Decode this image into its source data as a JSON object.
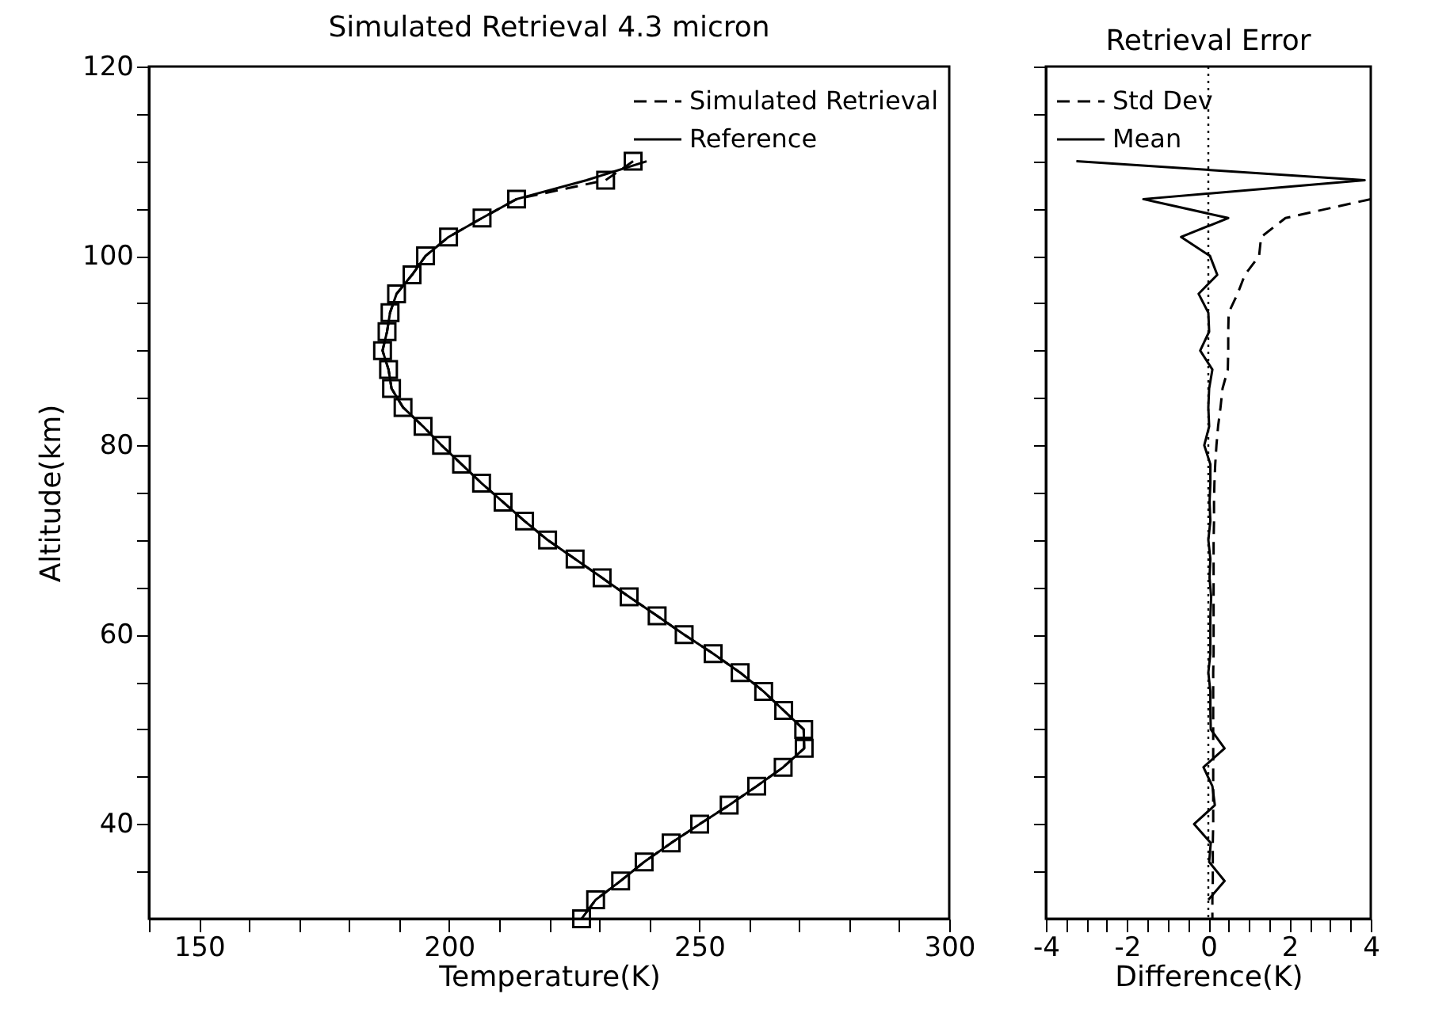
{
  "chart_data": [
    {
      "type": "line",
      "title": "Simulated Retrieval 4.3 micron",
      "xlabel": "Temperature(K)",
      "ylabel": "Altitude(km)",
      "xlim": [
        140,
        300
      ],
      "xticks": [
        {
          "value": 140,
          "label": null
        },
        150,
        {
          "value": 160,
          "label": null
        },
        {
          "value": 170,
          "label": null
        },
        {
          "value": 180,
          "label": null
        },
        {
          "value": 190,
          "label": null
        },
        200,
        {
          "value": 210,
          "label": null
        },
        {
          "value": 220,
          "label": null
        },
        {
          "value": 230,
          "label": null
        },
        {
          "value": 240,
          "label": null
        },
        250,
        {
          "value": 260,
          "label": null
        },
        {
          "value": 270,
          "label": null
        },
        {
          "value": 280,
          "label": null
        },
        {
          "value": 290,
          "label": null
        },
        300
      ],
      "ylim": [
        30,
        120
      ],
      "yticks": [
        {
          "value": 35,
          "label": null
        },
        40,
        {
          "value": 45,
          "label": null
        },
        {
          "value": 50,
          "label": null
        },
        {
          "value": 55,
          "label": null
        },
        60,
        {
          "value": 65,
          "label": null
        },
        {
          "value": 70,
          "label": null
        },
        {
          "value": 75,
          "label": null
        },
        80,
        {
          "value": 85,
          "label": null
        },
        {
          "value": 90,
          "label": null
        },
        {
          "value": 95,
          "label": null
        },
        100,
        {
          "value": 105,
          "label": null
        },
        {
          "value": 110,
          "label": null
        },
        {
          "value": 115,
          "label": null
        },
        120
      ],
      "grid": false,
      "legend": "top right",
      "series": [
        {
          "name": "Simulated Retrieval",
          "color": "#000000",
          "line_style": "dashed",
          "marker": "square",
          "x": [
            236.8,
            231.3,
            213.5,
            206.6,
            199.9,
            195.3,
            192.6,
            189.5,
            188.2,
            187.6,
            186.7,
            187.9,
            188.5,
            190.8,
            194.8,
            198.5,
            202.5,
            206.5,
            210.8,
            215.1,
            219.7,
            225.2,
            230.6,
            236.0,
            241.6,
            247.0,
            252.8,
            258.2,
            262.9,
            266.9,
            270.9,
            271.0,
            266.8,
            261.5,
            256.0,
            250.1,
            244.4,
            239.0,
            234.3,
            229.3,
            226.5
          ],
          "values": [
            110,
            108,
            106,
            104,
            102,
            100,
            98,
            96,
            94,
            92,
            90,
            88,
            86,
            84,
            82,
            80,
            78,
            76,
            74,
            72,
            70,
            68,
            66,
            64,
            62,
            60,
            58,
            56,
            54,
            52,
            50,
            48,
            46,
            44,
            42,
            40,
            38,
            36,
            34,
            32,
            30
          ]
        },
        {
          "name": "Reference",
          "color": "#000000",
          "line_style": "solid",
          "x": [
            239.5,
            227.5,
            213.5,
            206.6,
            199.9,
            195.3,
            192.6,
            189.5,
            188.2,
            187.6,
            186.7,
            187.9,
            188.5,
            190.8,
            194.8,
            198.5,
            202.5,
            206.5,
            210.8,
            215.1,
            219.7,
            225.2,
            230.6,
            236.0,
            241.6,
            247.0,
            252.8,
            258.2,
            262.9,
            266.9,
            270.9,
            271.0,
            266.8,
            261.5,
            256.0,
            250.1,
            244.4,
            239.0,
            234.3,
            229.3,
            226.5
          ],
          "values": [
            110,
            108,
            106,
            104,
            102,
            100,
            98,
            96,
            94,
            92,
            90,
            88,
            86,
            84,
            82,
            80,
            78,
            76,
            74,
            72,
            70,
            68,
            66,
            64,
            62,
            60,
            58,
            56,
            54,
            52,
            50,
            48,
            46,
            44,
            42,
            40,
            38,
            36,
            34,
            32,
            30
          ]
        }
      ]
    },
    {
      "type": "line",
      "title": "Retrieval Error",
      "xlabel": "Difference(K)",
      "xlim": [
        -4,
        4
      ],
      "xticks": [
        -4,
        {
          "value": -3.5,
          "label": null
        },
        {
          "value": -3,
          "label": null
        },
        {
          "value": -2.5,
          "label": null
        },
        -2,
        {
          "value": -1.5,
          "label": null
        },
        {
          "value": -1,
          "label": null
        },
        {
          "value": -0.5,
          "label": null
        },
        0,
        {
          "value": 0.5,
          "label": null
        },
        {
          "value": 1,
          "label": null
        },
        {
          "value": 1.5,
          "label": null
        },
        2,
        {
          "value": 2.5,
          "label": null
        },
        {
          "value": 3,
          "label": null
        },
        {
          "value": 3.5,
          "label": null
        },
        4
      ],
      "ylim": [
        30,
        120
      ],
      "yticks": [
        35,
        40,
        45,
        50,
        55,
        60,
        65,
        70,
        75,
        80,
        85,
        90,
        95,
        100,
        105,
        110,
        115,
        120
      ],
      "tick_labels": "x",
      "grid": false,
      "legend": "top left",
      "ref_lines": [
        {
          "axis": "x",
          "value": 0,
          "line_style": "dotted",
          "color": "#000000"
        }
      ],
      "series": [
        {
          "name": "Std Dev",
          "color": "#000000",
          "line_style": "dashed",
          "x": [
            4.0,
            1.9,
            1.3,
            1.25,
            0.9,
            0.72,
            0.5,
            0.49,
            0.49,
            0.48,
            0.35,
            0.3,
            0.24,
            0.2,
            0.17,
            0.15,
            0.14,
            0.14,
            0.13,
            0.13,
            0.13,
            0.13,
            0.13,
            0.13,
            0.13,
            0.12,
            0.12,
            0.12,
            0.12,
            0.12,
            0.12,
            0.12,
            0.12,
            0.12,
            0.11,
            0.11,
            0.11,
            0.1,
            0.1
          ],
          "values": [
            106,
            104,
            102,
            100,
            98,
            96,
            94,
            92,
            90,
            88,
            86,
            84,
            82,
            80,
            78,
            76,
            74,
            72,
            70,
            68,
            66,
            64,
            62,
            60,
            58,
            56,
            54,
            52,
            50,
            48,
            46,
            44,
            42,
            40,
            38,
            36,
            34,
            32,
            30
          ]
        },
        {
          "name": "Mean",
          "color": "#000000",
          "line_style": "solid",
          "x": [
            -3.25,
            3.85,
            -1.6,
            0.49,
            -0.67,
            0.04,
            0.22,
            -0.24,
            0.0,
            0.02,
            -0.2,
            0.1,
            0.02,
            0.0,
            0.02,
            -0.1,
            0.05,
            0.05,
            0.03,
            0.05,
            0.0,
            0.05,
            0.03,
            0.07,
            0.05,
            0.05,
            0.05,
            0.0,
            0.05,
            0.05,
            0.06,
            0.4,
            -0.12,
            0.1,
            0.16,
            -0.35,
            0.06,
            0.02,
            0.4,
            0.0
          ],
          "values": [
            110,
            108,
            106,
            104,
            102,
            100,
            98,
            96,
            94,
            92,
            90,
            88,
            86,
            84,
            82,
            80,
            78,
            76,
            74,
            72,
            70,
            68,
            66,
            64,
            62,
            60,
            58,
            56,
            54,
            52,
            50,
            48,
            46,
            44,
            42,
            40,
            38,
            36,
            34,
            32
          ]
        }
      ]
    }
  ]
}
